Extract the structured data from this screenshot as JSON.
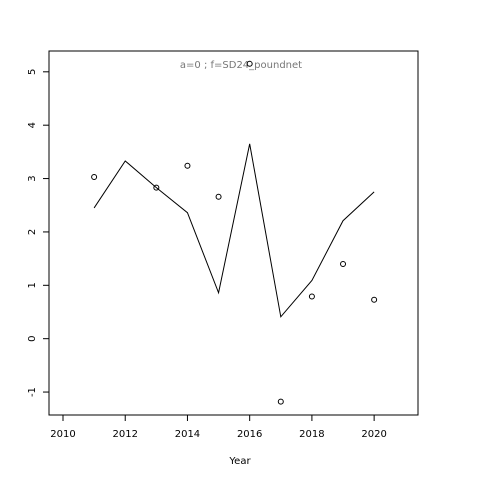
{
  "chart_data": {
    "type": "line",
    "title": "a=0  ;  f=SD24_poundnet",
    "x_label": "Year",
    "x": [
      2011,
      2012,
      2013,
      2014,
      2015,
      2016,
      2017,
      2018,
      2019,
      2020
    ],
    "series": [
      {
        "color": "#000000",
        "style": "line",
        "values": [
          2.45,
          3.33,
          2.83,
          2.36,
          0.86,
          3.65,
          0.41,
          1.09,
          2.21,
          2.75
        ]
      },
      {
        "color": "#000000",
        "style": "points",
        "values": [
          3.03,
          null,
          2.83,
          3.24,
          2.66,
          5.15,
          -1.18,
          0.79,
          1.4,
          0.73
        ]
      }
    ],
    "xlim": [
      2009.55,
      2021.41
    ],
    "ylim": [
      -1.43,
      5.39
    ],
    "xticks": [
      2010,
      2012,
      2014,
      2016,
      2018,
      2020
    ],
    "yticks": [
      -1,
      0,
      1,
      2,
      3,
      4,
      5
    ]
  }
}
